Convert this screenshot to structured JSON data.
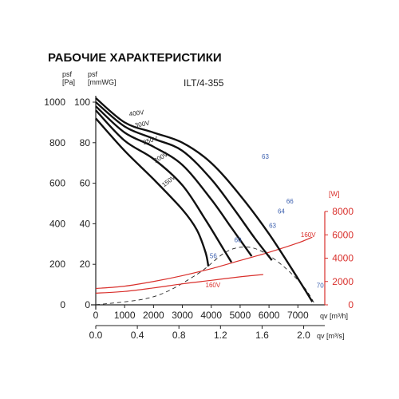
{
  "header": {
    "title": "РАБОЧИЕ ХАРАКТЕРИСТИКИ",
    "model": "ILT/4-355"
  },
  "chart_data": {
    "type": "line",
    "title": "РАБОЧИЕ ХАРАКТЕРИСТИКИ",
    "model": "ILT/4-355",
    "axes": {
      "left_outer": {
        "label_top": "psf",
        "label_unit": "[Pa]",
        "ticks": [
          "0",
          "200",
          "400",
          "600",
          "800",
          "1000"
        ],
        "range": [
          0,
          1000
        ]
      },
      "left_inner": {
        "label_top": "psf",
        "label_unit": "[mmWG]",
        "ticks": [
          "0",
          "20",
          "40",
          "60",
          "80",
          "100"
        ],
        "range": [
          0,
          100
        ]
      },
      "right_power": {
        "label_unit": "[W]",
        "ticks": [
          "0",
          "2000",
          "4000",
          "6000",
          "8000"
        ],
        "range": [
          0,
          8000
        ],
        "color": "#d9302c"
      },
      "x_m3h": {
        "label": "qv [m³/h]",
        "ticks": [
          "0",
          "1000",
          "2000",
          "3000",
          "4000",
          "5000",
          "6000",
          "7000"
        ],
        "range": [
          0,
          7600
        ]
      },
      "x_m3s": {
        "label": "qv [m³/s]",
        "ticks": [
          "0.0",
          "0.4",
          "0.8",
          "1.2",
          "1.6",
          "2.0"
        ]
      }
    },
    "series": [
      {
        "name": "400V",
        "points": [
          [
            0,
            1020
          ],
          [
            1000,
            900
          ],
          [
            2000,
            850
          ],
          [
            3000,
            800
          ],
          [
            4000,
            700
          ],
          [
            5000,
            540
          ],
          [
            6000,
            350
          ],
          [
            7000,
            130
          ],
          [
            7500,
            15
          ]
        ]
      },
      {
        "name": "300V",
        "points": [
          [
            0,
            1000
          ],
          [
            1000,
            880
          ],
          [
            2000,
            820
          ],
          [
            3000,
            760
          ],
          [
            4000,
            620
          ],
          [
            4800,
            470
          ],
          [
            5500,
            330
          ],
          [
            6100,
            220
          ]
        ]
      },
      {
        "name": "250V",
        "points": [
          [
            0,
            980
          ],
          [
            1000,
            850
          ],
          [
            2000,
            780
          ],
          [
            3000,
            690
          ],
          [
            4000,
            520
          ],
          [
            4700,
            380
          ],
          [
            5400,
            240
          ]
        ]
      },
      {
        "name": "200V",
        "points": [
          [
            0,
            960
          ],
          [
            1000,
            810
          ],
          [
            2000,
            720
          ],
          [
            3000,
            590
          ],
          [
            3800,
            420
          ],
          [
            4400,
            280
          ],
          [
            4700,
            210
          ]
        ]
      },
      {
        "name": "150V",
        "points": [
          [
            0,
            920
          ],
          [
            1000,
            760
          ],
          [
            2000,
            620
          ],
          [
            3000,
            470
          ],
          [
            3500,
            370
          ],
          [
            3800,
            260
          ],
          [
            3900,
            190
          ]
        ]
      }
    ],
    "efficiency_labels": [
      {
        "label": "63",
        "x": 5750,
        "y": 720
      },
      {
        "label": "66",
        "x": 6600,
        "y": 500
      },
      {
        "label": "64",
        "x": 6300,
        "y": 450
      },
      {
        "label": "63",
        "x": 6000,
        "y": 380
      },
      {
        "label": "60",
        "x": 4800,
        "y": 310
      },
      {
        "label": "56",
        "x": 3950,
        "y": 230
      },
      {
        "label": "70",
        "x": 7650,
        "y": 85
      }
    ],
    "efficiency_line": [
      [
        0,
        0
      ],
      [
        2000,
        40
      ],
      [
        3500,
        150
      ],
      [
        4500,
        260
      ],
      [
        5200,
        285
      ],
      [
        5800,
        260
      ],
      [
        6500,
        190
      ],
      [
        7200,
        90
      ],
      [
        7600,
        0
      ]
    ],
    "power_series": [
      {
        "name": "160V",
        "points": [
          [
            0,
            1400
          ],
          [
            1000,
            1600
          ],
          [
            2000,
            2000
          ],
          [
            3000,
            2500
          ],
          [
            4000,
            3100
          ],
          [
            5000,
            3800
          ],
          [
            6000,
            4500
          ],
          [
            7000,
            5300
          ],
          [
            7500,
            5800
          ]
        ]
      },
      {
        "name": "160V",
        "points": [
          [
            0,
            1000
          ],
          [
            1000,
            1150
          ],
          [
            2000,
            1450
          ],
          [
            3000,
            1800
          ],
          [
            4000,
            2100
          ],
          [
            5000,
            2400
          ],
          [
            5800,
            2600
          ]
        ]
      }
    ],
    "power_labels": [
      "160V",
      "160V"
    ],
    "grid": false
  }
}
